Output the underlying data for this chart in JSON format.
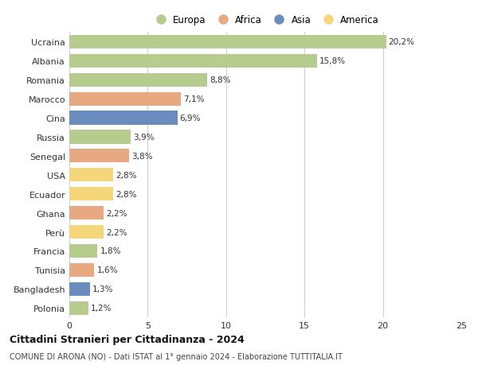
{
  "countries": [
    "Ucraina",
    "Albania",
    "Romania",
    "Marocco",
    "Cina",
    "Russia",
    "Senegal",
    "USA",
    "Ecuador",
    "Ghana",
    "Perù",
    "Francia",
    "Tunisia",
    "Bangladesh",
    "Polonia"
  ],
  "values": [
    20.2,
    15.8,
    8.8,
    7.1,
    6.9,
    3.9,
    3.8,
    2.8,
    2.8,
    2.2,
    2.2,
    1.8,
    1.6,
    1.3,
    1.2
  ],
  "labels": [
    "20,2%",
    "15,8%",
    "8,8%",
    "7,1%",
    "6,9%",
    "3,9%",
    "3,8%",
    "2,8%",
    "2,8%",
    "2,2%",
    "2,2%",
    "1,8%",
    "1,6%",
    "1,3%",
    "1,2%"
  ],
  "continents": [
    "Europa",
    "Europa",
    "Europa",
    "Africa",
    "Asia",
    "Europa",
    "Africa",
    "America",
    "America",
    "Africa",
    "America",
    "Europa",
    "Africa",
    "Asia",
    "Europa"
  ],
  "colors": {
    "Europa": "#b5cc8e",
    "Africa": "#e8a882",
    "Asia": "#6b8cbf",
    "America": "#f5d67a"
  },
  "legend_order": [
    "Europa",
    "Africa",
    "Asia",
    "America"
  ],
  "xlim": [
    0,
    25
  ],
  "xticks": [
    0,
    5,
    10,
    15,
    20,
    25
  ],
  "title": "Cittadini Stranieri per Cittadinanza - 2024",
  "subtitle": "COMUNE DI ARONA (NO) - Dati ISTAT al 1° gennaio 2024 - Elaborazione TUTTITALIA.IT",
  "background_color": "#ffffff",
  "grid_color": "#cccccc",
  "bar_height": 0.72
}
